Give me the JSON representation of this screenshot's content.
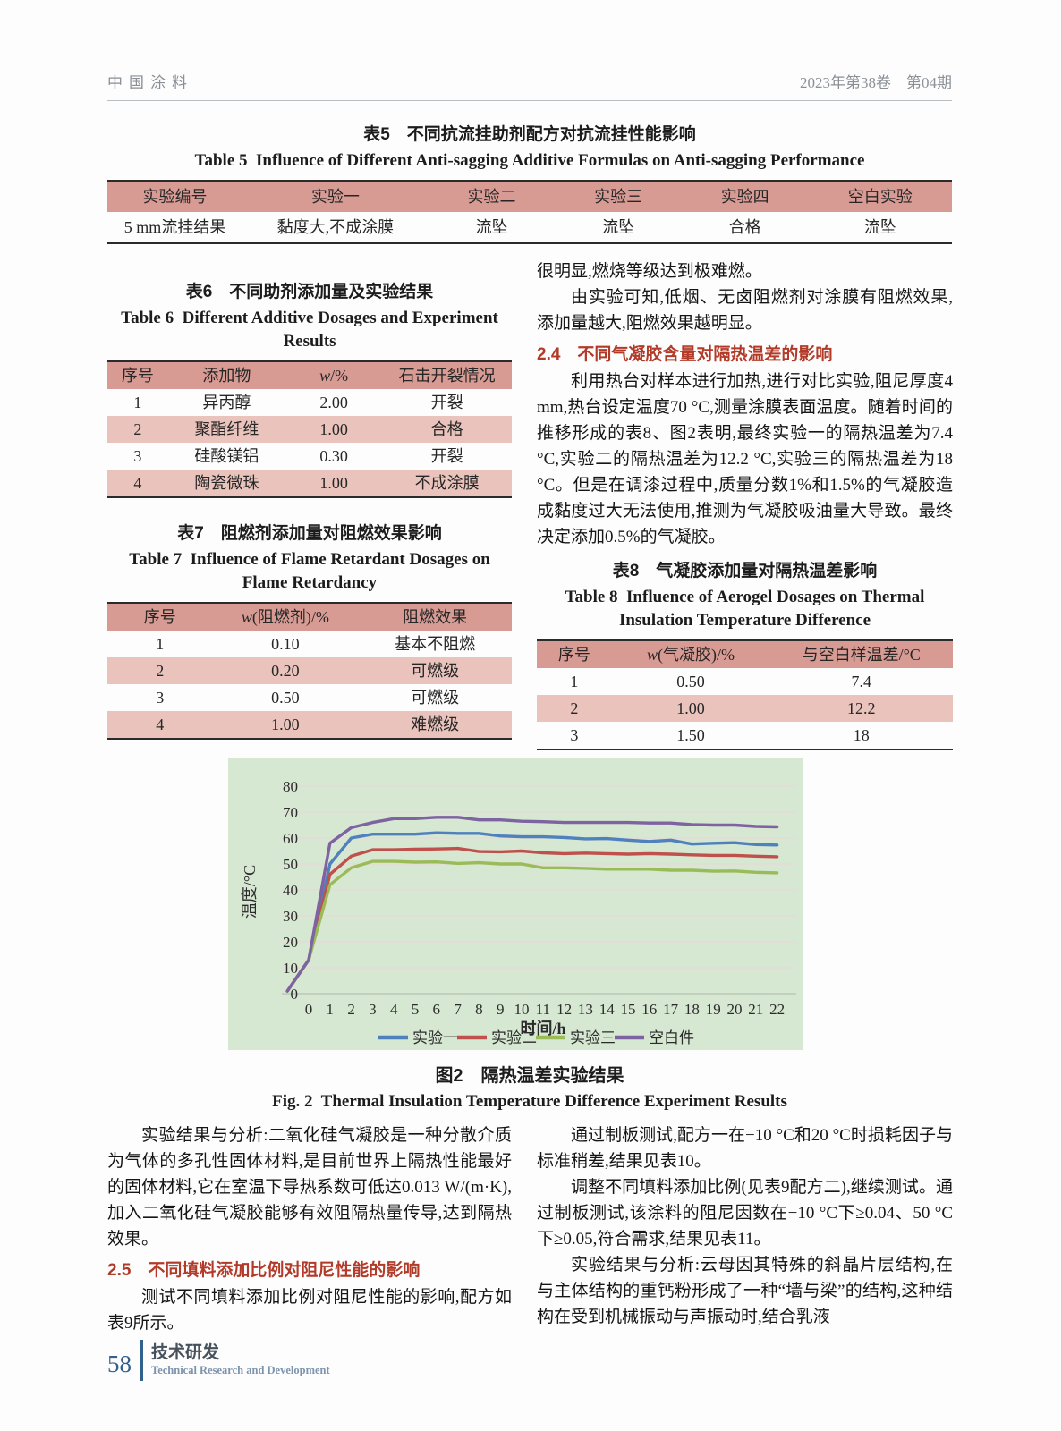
{
  "page_header": {
    "journal": "中国涂料",
    "issue": "2023年第38卷　第04期"
  },
  "table5": {
    "title_zh": "表5　不同抗流挂助剂配方对抗流挂性能影响",
    "title_en": "Table 5  Influence of Different Anti-sagging Additive Formulas on Anti-sagging Performance",
    "headers": [
      "实验编号",
      "实验一",
      "实验二",
      "实验三",
      "实验四",
      "空白实验"
    ],
    "rows": [
      [
        "5 mm流挂结果",
        "黏度大,不成涂膜",
        "流坠",
        "流坠",
        "合格",
        "流坠"
      ]
    ]
  },
  "table6": {
    "title_zh": "表6　不同助剂添加量及实验结果",
    "title_en": "Table 6  Different Additive Dosages and Experiment Results",
    "headers": [
      "序号",
      "添加物",
      "w/%",
      "石击开裂情况"
    ],
    "rows": [
      [
        "1",
        "异丙醇",
        "2.00",
        "开裂"
      ],
      [
        "2",
        "聚酯纤维",
        "1.00",
        "合格"
      ],
      [
        "3",
        "硅酸镁铝",
        "0.30",
        "开裂"
      ],
      [
        "4",
        "陶瓷微珠",
        "1.00",
        "不成涂膜"
      ]
    ]
  },
  "table7": {
    "title_zh": "表7　阻燃剂添加量对阻燃效果影响",
    "title_en": "Table 7  Influence of Flame Retardant Dosages on Flame Retardancy",
    "headers": [
      "序号",
      "w(阻燃剂)/%",
      "阻燃效果"
    ],
    "rows": [
      [
        "1",
        "0.10",
        "基本不阻燃"
      ],
      [
        "2",
        "0.20",
        "可燃级"
      ],
      [
        "3",
        "0.50",
        "可燃级"
      ],
      [
        "4",
        "1.00",
        "难燃级"
      ]
    ]
  },
  "table8": {
    "title_zh": "表8　气凝胶添加量对隔热温差影响",
    "title_en": "Table 8  Influence of Aerogel Dosages on Thermal Insulation Temperature Difference",
    "headers": [
      "序号",
      "w(气凝胶)/%",
      "与空白样温差/°C"
    ],
    "rows": [
      [
        "1",
        "0.50",
        "7.4"
      ],
      [
        "2",
        "1.00",
        "12.2"
      ],
      [
        "3",
        "1.50",
        "18"
      ]
    ]
  },
  "right_top": {
    "p1": "很明显,燃烧等级达到极难燃。",
    "p2": "由实验可知,低烟、无卤阻燃剂对涂膜有阻燃效果,添加量越大,阻燃效果越明显。",
    "heading_2_4": "2.4　不同气凝胶含量对隔热温差的影响",
    "p3": "利用热台对样本进行加热,进行对比实验,阻尼厚度4 mm,热台设定温度70 °C,测量涂膜表面温度。随着时间的推移形成的表8、图2表明,最终实验一的隔热温差为7.4 °C,实验二的隔热温差为12.2 °C,实验三的隔热温差为18 °C。但是在调漆过程中,质量分数1%和1.5%的气凝胶造成黏度过大无法使用,推测为气凝胶吸油量大导致。最终决定添加0.5%的气凝胶。"
  },
  "figure": {
    "caption_zh": "图2　隔热温差实验结果",
    "caption_en": "Fig. 2  Thermal Insulation Temperature Difference Experiment Results"
  },
  "chart_data": {
    "type": "line",
    "xlabel": "时间/h",
    "ylabel": "温度/°C",
    "ylim": [
      0,
      80
    ],
    "y_ticks": [
      0,
      10,
      20,
      30,
      40,
      50,
      60,
      70,
      80
    ],
    "x_ticks": [
      0,
      1,
      2,
      3,
      4,
      5,
      6,
      7,
      8,
      9,
      10,
      11,
      12,
      13,
      14,
      15,
      16,
      17,
      18,
      19,
      20,
      21,
      22
    ],
    "grid": "horizontal",
    "legend_position": "bottom",
    "plot_bg": "#d6e7d2",
    "x": [
      -1,
      0,
      1,
      2,
      3,
      4,
      5,
      6,
      7,
      8,
      9,
      10,
      11,
      12,
      13,
      14,
      15,
      16,
      17,
      18,
      19,
      20,
      21,
      22
    ],
    "series": [
      {
        "name": "实验一",
        "color": "#4f81bd",
        "values": [
          1,
          13,
          50,
          60,
          61.5,
          61.5,
          61.5,
          62,
          61.8,
          61.8,
          60.8,
          60.5,
          60.5,
          60.2,
          59.7,
          59.8,
          59.2,
          58.7,
          59.2,
          57.7,
          58,
          58.2,
          57.5,
          57.3
        ]
      },
      {
        "name": "实验二",
        "color": "#bf504c",
        "values": [
          1,
          13,
          46,
          53,
          55.5,
          55.5,
          55.7,
          55.8,
          56,
          54.8,
          54.7,
          55,
          54.3,
          54,
          54.2,
          54,
          53.8,
          54,
          53.8,
          53.5,
          53.3,
          53.3,
          53,
          52.8
        ]
      },
      {
        "name": "实验三",
        "color": "#9bbb59",
        "values": [
          1,
          13,
          42,
          48.5,
          51,
          51,
          50.7,
          50.8,
          50.2,
          50.5,
          50,
          50,
          48.5,
          48.5,
          48.3,
          48,
          48,
          48,
          47.6,
          47.6,
          47.2,
          47.3,
          46.8,
          46.6
        ]
      },
      {
        "name": "空白件",
        "color": "#7e62a1",
        "values": [
          1,
          13,
          58,
          64,
          66,
          67.5,
          67.5,
          68,
          68,
          67,
          67,
          66.5,
          66.3,
          66,
          66,
          66,
          66,
          65.8,
          65.8,
          65.2,
          65,
          65,
          64.5,
          64.3
        ]
      }
    ]
  },
  "bottom_left": {
    "p1": "实验结果与分析:二氧化硅气凝胶是一种分散介质为气体的多孔性固体材料,是目前世界上隔热性能最好的固体材料,它在室温下导热系数可低达0.013 W/(m·K),加入二氧化硅气凝胶能够有效阻隔热量传导,达到隔热效果。",
    "heading_2_5": "2.5　不同填料添加比例对阻尼性能的影响",
    "p2": "测试不同填料添加比例对阻尼性能的影响,配方如表9所示。"
  },
  "bottom_right": {
    "p1": "通过制板测试,配方一在−10 °C和20 °C时损耗因子与标准稍差,结果见表10。",
    "p2": "调整不同填料添加比例(见表9配方二),继续测试。通过制板测试,该涂料的阻尼因数在−10 °C下≥0.04、50 °C下≥0.05,符合需求,结果见表11。",
    "p3": "实验结果与分析:云母因其特殊的斜晶片层结构,在与主体结构的重钙粉形成了一种“墙与梁”的结构,这种结构在受到机械振动与声振动时,结合乳液"
  },
  "footer": {
    "page_number": "58",
    "section_zh": "技术研发",
    "section_en": "Technical Research and Development"
  }
}
